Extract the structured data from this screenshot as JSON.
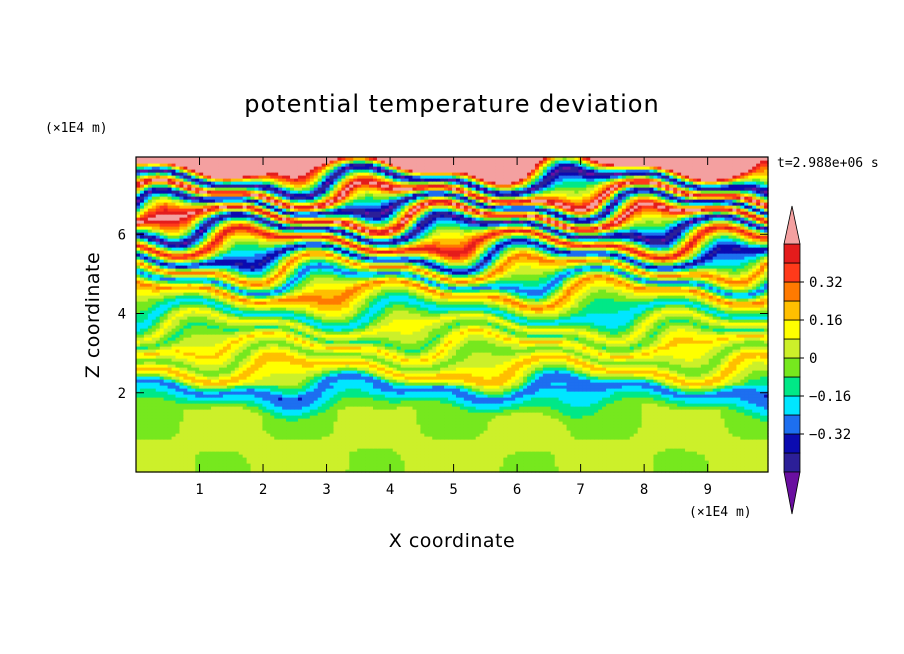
{
  "chart_data": {
    "type": "heatmap",
    "title": "potential temperature deviation",
    "xlabel": "X coordinate",
    "ylabel": "Z coordinate",
    "x_unit": "(×1E4 m)",
    "z_unit": "(×1E4 m)",
    "time_label": "t=2.988e+06 s",
    "xlim": [
      0,
      9.95
    ],
    "zlim": [
      0,
      7.95
    ],
    "x_ticks": [
      "1",
      "2",
      "3",
      "4",
      "5",
      "6",
      "7",
      "8",
      "9"
    ],
    "z_ticks": [
      "2",
      "4",
      "6"
    ],
    "colorbar": {
      "levels": [
        -0.48,
        -0.4,
        -0.32,
        -0.24,
        -0.16,
        -0.08,
        0.0,
        0.08,
        0.16,
        0.24,
        0.32,
        0.4,
        0.48
      ],
      "colors": [
        "#6a0fa0",
        "#2c1f98",
        "#0b0bb0",
        "#1d6ff0",
        "#00e6ff",
        "#00e887",
        "#76e81e",
        "#ccf02a",
        "#ffff00",
        "#ffbf00",
        "#ff7a00",
        "#ff3a1a",
        "#e41c1c",
        "#f4a0a0"
      ],
      "labels": [
        "0.32",
        "0.16",
        "0",
        "−0.16",
        "−0.32"
      ],
      "label_values": [
        0.32,
        0.16,
        0.0,
        -0.16,
        -0.32
      ]
    },
    "bands": [
      {
        "z": 7.7,
        "v": 0.56
      },
      {
        "z": 7.35,
        "v": -0.52
      },
      {
        "z": 7.0,
        "v": 0.55
      },
      {
        "z": 6.75,
        "v": -0.5
      },
      {
        "z": 6.45,
        "v": 0.53
      },
      {
        "z": 6.15,
        "v": -0.5
      },
      {
        "z": 5.8,
        "v": 0.46
      },
      {
        "z": 5.45,
        "v": -0.42
      },
      {
        "z": 5.15,
        "v": 0.3
      },
      {
        "z": 4.85,
        "v": -0.3
      },
      {
        "z": 4.55,
        "v": 0.28
      },
      {
        "z": 4.3,
        "v": 0.05
      },
      {
        "z": 4.0,
        "v": -0.22
      },
      {
        "z": 3.7,
        "v": 0.12
      },
      {
        "z": 3.45,
        "v": -0.1
      },
      {
        "z": 3.2,
        "v": 0.18
      },
      {
        "z": 2.9,
        "v": -0.06
      },
      {
        "z": 2.6,
        "v": 0.22
      },
      {
        "z": 2.35,
        "v": 0.02
      },
      {
        "z": 2.1,
        "v": -0.3
      },
      {
        "z": 1.5,
        "v": 0.0
      },
      {
        "z": 0.2,
        "v": 0.02
      }
    ]
  }
}
